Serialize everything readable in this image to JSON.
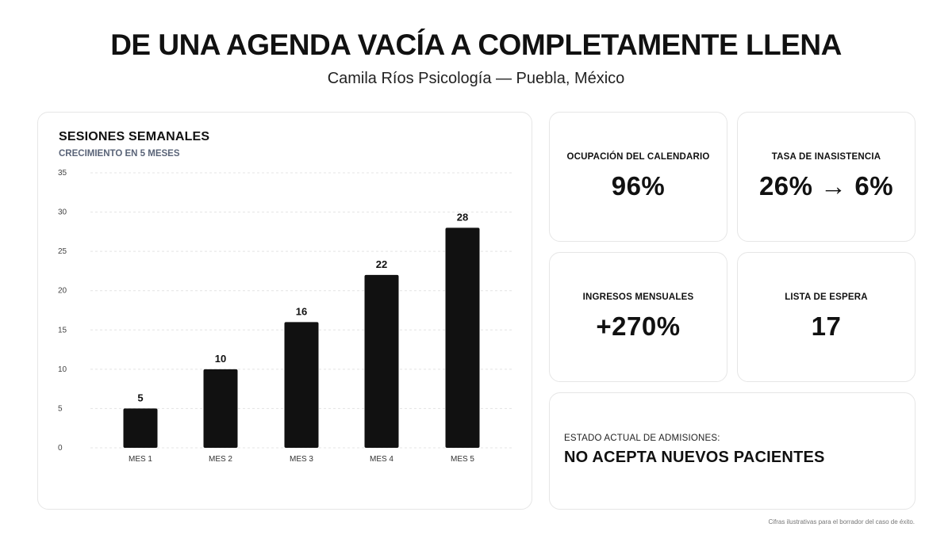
{
  "header": {
    "title": "DE UNA AGENDA VACÍA A COMPLETAMENTE LLENA",
    "subtitle": "Camila Ríos Psicología — Puebla, México"
  },
  "chart_data": {
    "type": "bar",
    "title": "SESIONES SEMANALES",
    "subtitle": "CRECIMIENTO EN 5 MESES",
    "categories": [
      "MES 1",
      "MES 2",
      "MES 3",
      "MES 4",
      "MES 5"
    ],
    "values": [
      5,
      10,
      16,
      22,
      28
    ],
    "data_labels": [
      "5",
      "10",
      "16",
      "22",
      "28"
    ],
    "ylim": [
      0,
      35
    ],
    "yticks": [
      0,
      5,
      10,
      15,
      20,
      25,
      30,
      35
    ],
    "grid": true,
    "bar_color": "#111111"
  },
  "stats": [
    {
      "label": "OCUPACIÓN DEL CALENDARIO",
      "value": "96%"
    },
    {
      "label": "TASA DE INASISTENCIA",
      "value": "26% → 6%"
    },
    {
      "label": "INGRESOS MENSUALES",
      "value": "+270%"
    },
    {
      "label": "LISTA DE ESPERA",
      "value": "17"
    }
  ],
  "status": {
    "label": "ESTADO ACTUAL DE ADMISIONES:",
    "value": "NO ACEPTA NUEVOS PACIENTES"
  },
  "footnote": "Cifras ilustrativas para el borrador del caso de éxito."
}
